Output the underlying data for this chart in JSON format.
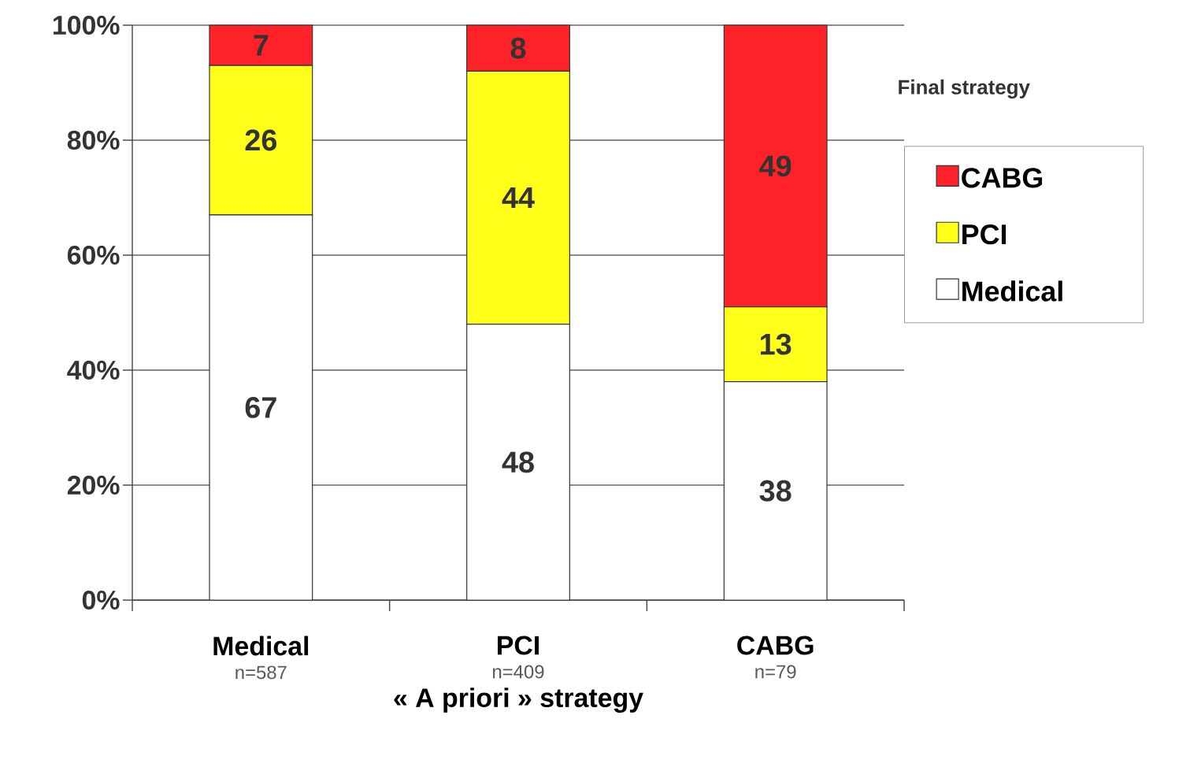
{
  "chart_data": {
    "type": "bar",
    "stacked": true,
    "categories": [
      "Medical",
      "PCI",
      "CABG"
    ],
    "series": [
      {
        "name": "Medical",
        "color": "#ffffff",
        "values": [
          67,
          48,
          38
        ]
      },
      {
        "name": "PCI",
        "color": "#ffff1a",
        "values": [
          26,
          44,
          13
        ]
      },
      {
        "name": "CABG",
        "color": "#ff2228",
        "values": [
          7,
          8,
          49
        ]
      }
    ],
    "xlabel": "« A priori » strategy",
    "legend_title": "Final strategy",
    "legend": "right",
    "grid": "y",
    "data_labels": true,
    "ylim": [
      0,
      100
    ],
    "yticks": [
      {
        "value": 0,
        "label": "0%"
      },
      {
        "value": 20,
        "label": "20%"
      },
      {
        "value": 40,
        "label": "40%"
      },
      {
        "value": 60,
        "label": "60%"
      },
      {
        "value": 80,
        "label": "80%"
      },
      {
        "value": 100,
        "label": "100%"
      }
    ],
    "annotations": [
      "n=587",
      "n=409",
      "n=79"
    ]
  }
}
